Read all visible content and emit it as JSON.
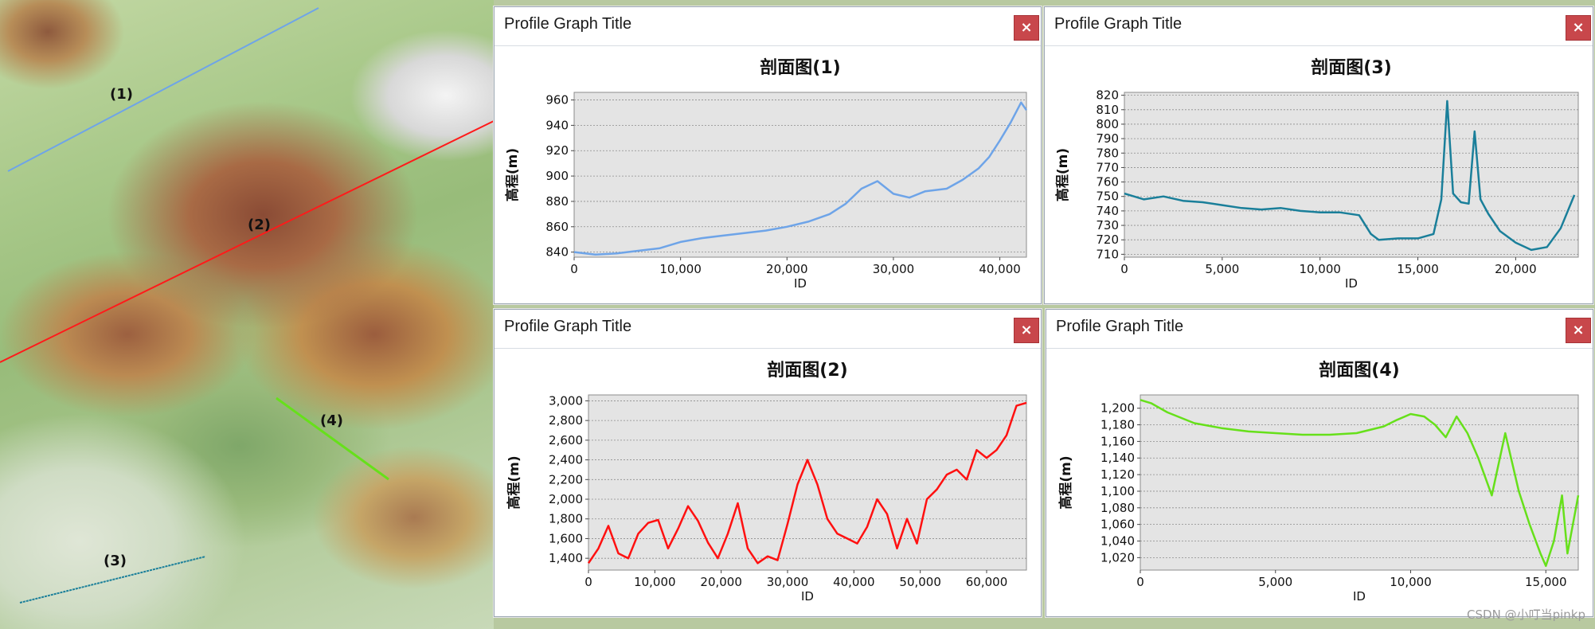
{
  "map": {
    "labels": [
      "(1)",
      "(2)",
      "(3)",
      "(4)"
    ],
    "line_colors": [
      "#6ea4e8",
      "#ff1a1a",
      "#1a7f9a",
      "#66e01a"
    ]
  },
  "panels": [
    {
      "window_title": "Profile Graph Title",
      "close_label": "×"
    },
    {
      "window_title": "Profile Graph Title",
      "close_label": "×"
    },
    {
      "window_title": "Profile Graph Title",
      "close_label": "×"
    },
    {
      "window_title": "Profile Graph Title",
      "close_label": "×"
    }
  ],
  "watermark": "CSDN @小叮当pinkp",
  "chart_data": [
    {
      "type": "line",
      "title": "剖面图(1)",
      "xlabel": "ID",
      "ylabel": "高程(m)",
      "color": "#6ea4e8",
      "xlim": [
        0,
        42500
      ],
      "ylim": [
        836,
        966
      ],
      "xticks": [
        0,
        10000,
        20000,
        30000,
        40000
      ],
      "xtick_labels": [
        "0",
        "10,000",
        "20,000",
        "30,000",
        "40,000"
      ],
      "yticks": [
        840,
        860,
        880,
        900,
        920,
        940,
        960
      ],
      "ytick_labels": [
        "840",
        "860",
        "880",
        "900",
        "920",
        "940",
        "960"
      ],
      "grid": true,
      "x": [
        0,
        2000,
        4000,
        6000,
        8000,
        10000,
        12000,
        14000,
        16000,
        18000,
        20000,
        22000,
        24000,
        25500,
        27000,
        28500,
        30000,
        31500,
        33000,
        35000,
        36500,
        38000,
        39000,
        40000,
        41000,
        42000,
        42500
      ],
      "y": [
        840,
        838,
        839,
        841,
        843,
        848,
        851,
        853,
        855,
        857,
        860,
        864,
        870,
        878,
        890,
        896,
        886,
        883,
        888,
        890,
        897,
        906,
        915,
        928,
        942,
        958,
        952
      ]
    },
    {
      "type": "line",
      "title": "剖面图(3)",
      "xlabel": "ID",
      "ylabel": "高程(m)",
      "color": "#1a7f9a",
      "xlim": [
        0,
        23200
      ],
      "ylim": [
        708,
        822
      ],
      "xticks": [
        0,
        5000,
        10000,
        15000,
        20000
      ],
      "xtick_labels": [
        "0",
        "5,000",
        "10,000",
        "15,000",
        "20,000"
      ],
      "yticks": [
        710,
        720,
        730,
        740,
        750,
        760,
        770,
        780,
        790,
        800,
        810,
        820
      ],
      "ytick_labels": [
        "710",
        "720",
        "730",
        "740",
        "750",
        "760",
        "770",
        "780",
        "790",
        "800",
        "810",
        "820"
      ],
      "grid": true,
      "x": [
        0,
        1000,
        2000,
        3000,
        4000,
        5000,
        6000,
        7000,
        8000,
        9000,
        10000,
        11000,
        12000,
        12600,
        13000,
        14000,
        15000,
        15800,
        16200,
        16500,
        16800,
        17200,
        17600,
        17900,
        18200,
        18600,
        19200,
        20000,
        20800,
        21600,
        22300,
        23000
      ],
      "y": [
        752,
        748,
        750,
        747,
        746,
        744,
        742,
        741,
        742,
        740,
        739,
        739,
        737,
        724,
        720,
        721,
        721,
        724,
        748,
        816,
        752,
        746,
        745,
        795,
        748,
        738,
        726,
        718,
        713,
        715,
        728,
        751
      ]
    },
    {
      "type": "line",
      "title": "剖面图(2)",
      "xlabel": "ID",
      "ylabel": "高程(m)",
      "color": "#ff1010",
      "xlim": [
        0,
        66000
      ],
      "ylim": [
        1280,
        3060
      ],
      "xticks": [
        0,
        10000,
        20000,
        30000,
        40000,
        50000,
        60000
      ],
      "xtick_labels": [
        "0",
        "10,000",
        "20,000",
        "30,000",
        "40,000",
        "50,000",
        "60,000"
      ],
      "yticks": [
        1400,
        1600,
        1800,
        2000,
        2200,
        2400,
        2600,
        2800,
        3000
      ],
      "ytick_labels": [
        "1,400",
        "1,600",
        "1,800",
        "2,000",
        "2,200",
        "2,400",
        "2,600",
        "2,800",
        "3,000"
      ],
      "grid": true,
      "x": [
        0,
        1500,
        3000,
        4500,
        6000,
        7500,
        9000,
        10500,
        12000,
        13500,
        15000,
        16500,
        18000,
        19500,
        21000,
        22500,
        24000,
        25500,
        27000,
        28500,
        30000,
        31500,
        33000,
        34500,
        36000,
        37500,
        39000,
        40500,
        42000,
        43500,
        45000,
        46500,
        48000,
        49500,
        51000,
        52500,
        54000,
        55500,
        57000,
        58500,
        60000,
        61500,
        63000,
        64500,
        66000
      ],
      "y": [
        1350,
        1500,
        1730,
        1450,
        1400,
        1650,
        1760,
        1790,
        1500,
        1700,
        1930,
        1780,
        1560,
        1400,
        1650,
        1960,
        1500,
        1350,
        1420,
        1380,
        1750,
        2150,
        2400,
        2150,
        1800,
        1650,
        1600,
        1550,
        1720,
        2000,
        1850,
        1500,
        1800,
        1550,
        2000,
        2100,
        2250,
        2300,
        2200,
        2500,
        2420,
        2500,
        2650,
        2950,
        2980
      ]
    },
    {
      "type": "line",
      "title": "剖面图(4)",
      "xlabel": "ID",
      "ylabel": "高程(m)",
      "color": "#66e01a",
      "xlim": [
        0,
        16200
      ],
      "ylim": [
        1005,
        1216
      ],
      "xticks": [
        0,
        5000,
        10000,
        15000
      ],
      "xtick_labels": [
        "0",
        "5,000",
        "10,000",
        "15,000"
      ],
      "yticks": [
        1020,
        1040,
        1060,
        1080,
        1100,
        1120,
        1140,
        1160,
        1180,
        1200
      ],
      "ytick_labels": [
        "1,020",
        "1,040",
        "1,060",
        "1,080",
        "1,100",
        "1,120",
        "1,140",
        "1,160",
        "1,180",
        "1,200"
      ],
      "grid": true,
      "x": [
        0,
        400,
        1000,
        2000,
        3000,
        4000,
        5000,
        6000,
        7000,
        8000,
        9000,
        9500,
        10000,
        10500,
        10900,
        11300,
        11700,
        12100,
        12500,
        13000,
        13500,
        14000,
        14400,
        14800,
        15000,
        15300,
        15600,
        15800,
        16000,
        16200
      ],
      "y": [
        1210,
        1206,
        1195,
        1182,
        1176,
        1172,
        1170,
        1168,
        1168,
        1170,
        1178,
        1186,
        1193,
        1190,
        1180,
        1165,
        1190,
        1170,
        1140,
        1095,
        1170,
        1100,
        1060,
        1025,
        1010,
        1040,
        1095,
        1025,
        1060,
        1095
      ]
    }
  ]
}
